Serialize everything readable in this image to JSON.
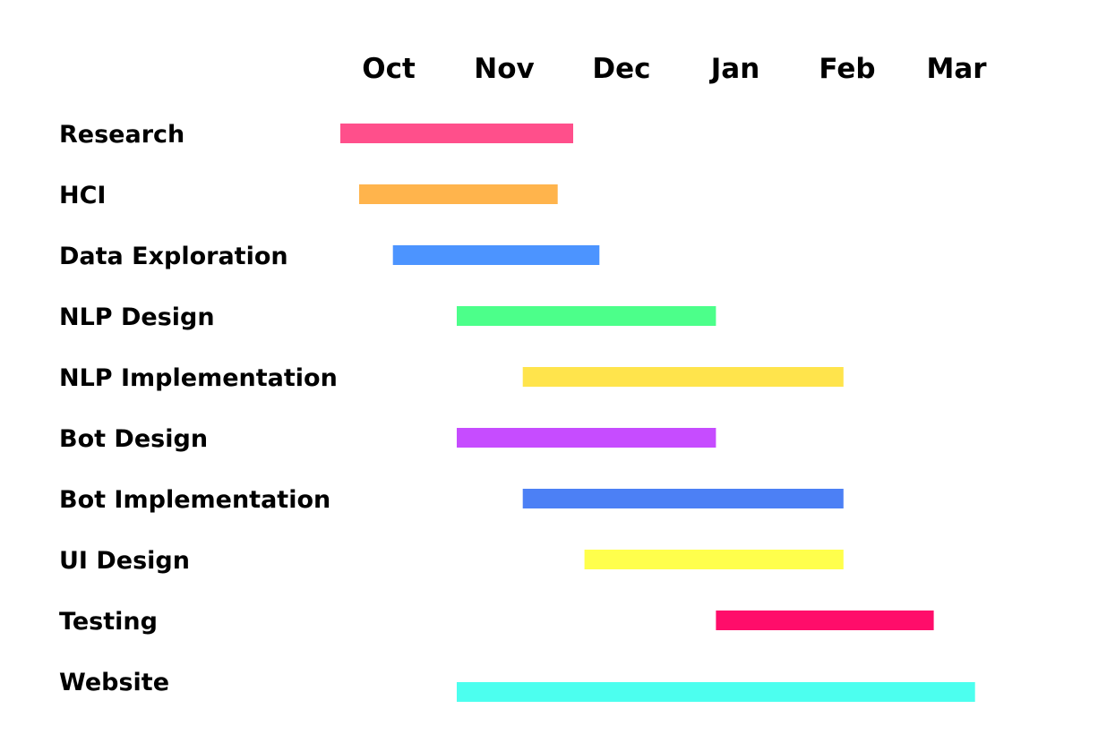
{
  "chart_data": {
    "type": "gantt",
    "title": "",
    "months": [
      "Oct",
      "Nov",
      "Dec",
      "Jan",
      "Feb",
      "Mar"
    ],
    "tasks": [
      {
        "label": "Research",
        "start": "Oct 1",
        "end": "Dec 1",
        "color": "#FF4F8B"
      },
      {
        "label": "HCI",
        "start": "Oct 6",
        "end": "Nov 27",
        "color": "#FFB44C"
      },
      {
        "label": "Data Exploration",
        "start": "Oct 15",
        "end": "Dec 8",
        "color": "#4C94FF"
      },
      {
        "label": "NLP Design",
        "start": "Nov 1",
        "end": "Jan 8",
        "color": "#4CFF8A"
      },
      {
        "label": "NLP Implementation",
        "start": "Nov 18",
        "end": "Feb 10",
        "color": "#FFE44C"
      },
      {
        "label": "Bot Design",
        "start": "Nov 1",
        "end": "Jan 8",
        "color": "#C64CFF"
      },
      {
        "label": "Bot Implementation",
        "start": "Nov 18",
        "end": "Feb 10",
        "color": "#4C80F5"
      },
      {
        "label": "UI Design",
        "start": "Dec 4",
        "end": "Feb 10",
        "color": "#FFFF4C"
      },
      {
        "label": "Testing",
        "start": "Jan 8",
        "end": "Mar 4",
        "color": "#FF0D6A"
      },
      {
        "label": "Website",
        "start": "Nov 1",
        "end": "Mar 15",
        "color": "#4CFFEF"
      }
    ]
  }
}
